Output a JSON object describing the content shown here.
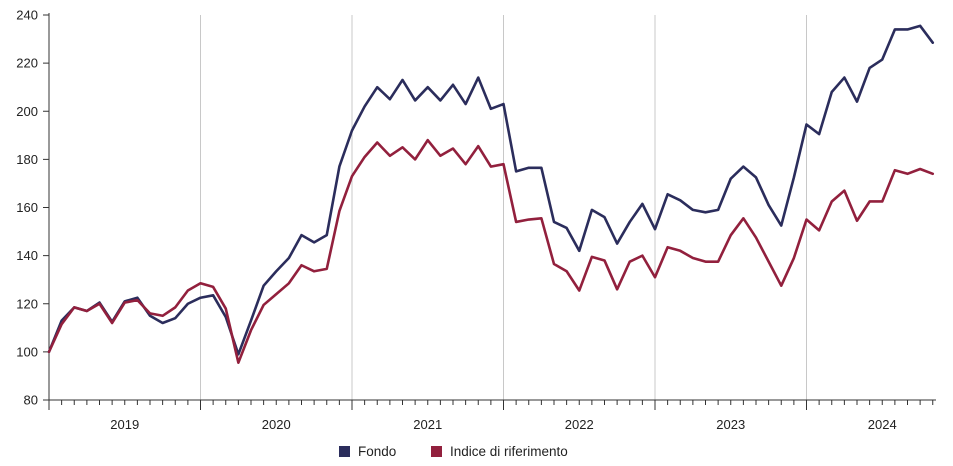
{
  "chart_data": {
    "type": "line",
    "title": "",
    "xlabel": "",
    "ylabel": "",
    "ylim": [
      80,
      240
    ],
    "yticks": [
      80,
      100,
      120,
      140,
      160,
      180,
      200,
      220,
      240
    ],
    "year_labels": [
      "2019",
      "2020",
      "2021",
      "2022",
      "2023",
      "2024"
    ],
    "x_start": "2019-01",
    "x_end": "2024-12",
    "grid": "vertical year separators",
    "legend_position": "bottom-center",
    "series": [
      {
        "name": "Fondo",
        "color": "#2b2d5c",
        "values": [
          100,
          113,
          118.5,
          117,
          120.5,
          112.5,
          121,
          122.5,
          115,
          112,
          114,
          120,
          122.5,
          123.5,
          114.5,
          99,
          113,
          127.5,
          133.5,
          139,
          148.5,
          145.5,
          148.5,
          177,
          192,
          202,
          210,
          205,
          213,
          204.5,
          210,
          204.5,
          211,
          203,
          214,
          201,
          203,
          175,
          176.5,
          176.5,
          154,
          151.5,
          142,
          159,
          156,
          145,
          154,
          161.5,
          151,
          165.5,
          163,
          159,
          158,
          159,
          172,
          177,
          172.5,
          161,
          152.5,
          172.5,
          194.5,
          190.5,
          208,
          214,
          204,
          218,
          221.5,
          234,
          234,
          235.5,
          228.5
        ]
      },
      {
        "name": "Indice di riferimento",
        "color": "#92203d",
        "values": [
          100,
          111.5,
          118.5,
          117,
          120,
          112,
          120.5,
          121.5,
          116,
          115,
          118.5,
          125.5,
          128.5,
          127,
          118,
          95.5,
          109,
          119.5,
          124,
          128.5,
          136,
          133.5,
          134.5,
          158.5,
          173,
          181,
          187,
          181.5,
          185,
          180,
          188,
          181.5,
          184.5,
          178,
          185.5,
          177,
          178,
          154,
          155,
          155.5,
          136.5,
          133.5,
          125.5,
          139.5,
          138,
          126,
          137.5,
          140,
          131,
          143.5,
          142,
          139,
          137.5,
          137.5,
          148.5,
          155.5,
          147.5,
          137.5,
          127.5,
          139,
          155,
          150.5,
          162.5,
          167,
          154.5,
          162.5,
          162.5,
          175.5,
          174,
          176,
          174
        ]
      }
    ]
  }
}
